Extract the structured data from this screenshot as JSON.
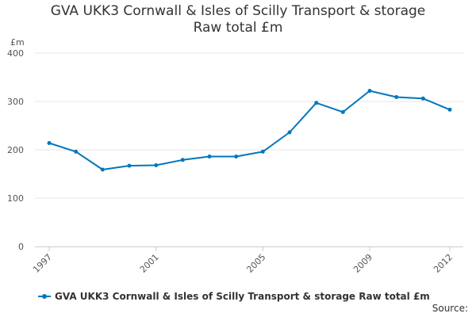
{
  "chart_data": {
    "type": "line",
    "title": "GVA UKK3 Cornwall & Isles of Scilly Transport & storage",
    "subtitle": "Raw total £m",
    "ylabel": "£m",
    "xlabel": "",
    "x": [
      1997,
      1998,
      1999,
      2000,
      2001,
      2002,
      2003,
      2004,
      2005,
      2006,
      2007,
      2008,
      2009,
      2010,
      2011,
      2012
    ],
    "series": [
      {
        "name": "GVA UKK3 Cornwall & Isles of Scilly Transport & storage Raw total £m",
        "values": [
          214,
          196,
          159,
          167,
          168,
          179,
          186,
          186,
          196,
          236,
          297,
          278,
          322,
          309,
          306,
          283
        ]
      }
    ],
    "x_ticks": [
      "1997",
      "2001",
      "2005",
      "2009",
      "2012"
    ],
    "y_ticks": [
      "0",
      "100",
      "200",
      "300",
      "400"
    ],
    "ylim": [
      0,
      400
    ],
    "xlim": [
      1997,
      2012
    ],
    "grid": true,
    "legend_position": "bottom-left",
    "series_color": "#0077bc",
    "source_label": "Source:"
  }
}
